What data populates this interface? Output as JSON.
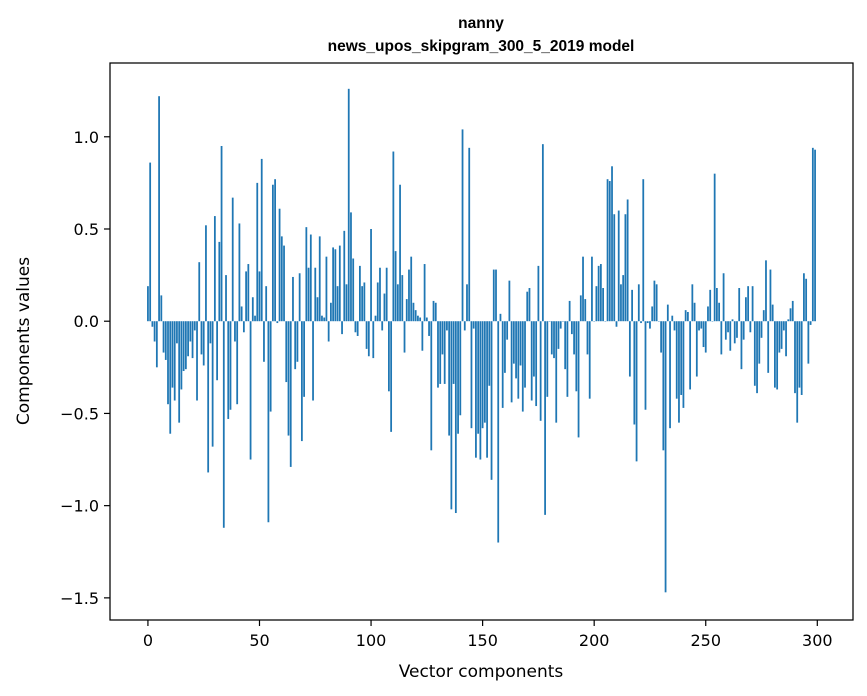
{
  "chart_data": {
    "type": "bar",
    "title": "nanny",
    "subtitle": "news_upos_skipgram_300_5_2019 model",
    "xlabel": "Vector components",
    "ylabel": "Components values",
    "xlim": [
      -17,
      316
    ],
    "ylim": [
      -1.62,
      1.4
    ],
    "xticks": [
      0,
      50,
      100,
      150,
      200,
      250,
      300
    ],
    "xtick_labels": [
      "0",
      "50",
      "100",
      "150",
      "200",
      "250",
      "300"
    ],
    "yticks": [
      -1.5,
      -1.0,
      -0.5,
      0.0,
      0.5,
      1.0
    ],
    "ytick_labels": [
      "−1.5",
      "−1.0",
      "−0.5",
      "0.0",
      "0.5",
      "1.0"
    ],
    "bar_color": "#1f77b4",
    "x": [
      0,
      1,
      2,
      3,
      4,
      5,
      6,
      7,
      8,
      9,
      10,
      11,
      12,
      13,
      14,
      15,
      16,
      17,
      18,
      19,
      20,
      21,
      22,
      23,
      24,
      25,
      26,
      27,
      28,
      29,
      30,
      31,
      32,
      33,
      34,
      35,
      36,
      37,
      38,
      39,
      40,
      41,
      42,
      43,
      44,
      45,
      46,
      47,
      48,
      49,
      50,
      51,
      52,
      53,
      54,
      55,
      56,
      57,
      58,
      59,
      60,
      61,
      62,
      63,
      64,
      65,
      66,
      67,
      68,
      69,
      70,
      71,
      72,
      73,
      74,
      75,
      76,
      77,
      78,
      79,
      80,
      81,
      82,
      83,
      84,
      85,
      86,
      87,
      88,
      89,
      90,
      91,
      92,
      93,
      94,
      95,
      96,
      97,
      98,
      99,
      100,
      101,
      102,
      103,
      104,
      105,
      106,
      107,
      108,
      109,
      110,
      111,
      112,
      113,
      114,
      115,
      116,
      117,
      118,
      119,
      120,
      121,
      122,
      123,
      124,
      125,
      126,
      127,
      128,
      129,
      130,
      131,
      132,
      133,
      134,
      135,
      136,
      137,
      138,
      139,
      140,
      141,
      142,
      143,
      144,
      145,
      146,
      147,
      148,
      149,
      150,
      151,
      152,
      153,
      154,
      155,
      156,
      157,
      158,
      159,
      160,
      161,
      162,
      163,
      164,
      165,
      166,
      167,
      168,
      169,
      170,
      171,
      172,
      173,
      174,
      175,
      176,
      177,
      178,
      179,
      180,
      181,
      182,
      183,
      184,
      185,
      186,
      187,
      188,
      189,
      190,
      191,
      192,
      193,
      194,
      195,
      196,
      197,
      198,
      199,
      200,
      201,
      202,
      203,
      204,
      205,
      206,
      207,
      208,
      209,
      210,
      211,
      212,
      213,
      214,
      215,
      216,
      217,
      218,
      219,
      220,
      221,
      222,
      223,
      224,
      225,
      226,
      227,
      228,
      229,
      230,
      231,
      232,
      233,
      234,
      235,
      236,
      237,
      238,
      239,
      240,
      241,
      242,
      243,
      244,
      245,
      246,
      247,
      248,
      249,
      250,
      251,
      252,
      253,
      254,
      255,
      256,
      257,
      258,
      259,
      260,
      261,
      262,
      263,
      264,
      265,
      266,
      267,
      268,
      269,
      270,
      271,
      272,
      273,
      274,
      275,
      276,
      277,
      278,
      279,
      280,
      281,
      282,
      283,
      284,
      285,
      286,
      287,
      288,
      289,
      290,
      291,
      292,
      293,
      294,
      295,
      296,
      297,
      298,
      299
    ],
    "values": [
      0.19,
      0.86,
      -0.03,
      -0.11,
      -0.25,
      1.22,
      0.14,
      -0.17,
      -0.21,
      -0.45,
      -0.61,
      -0.36,
      -0.43,
      -0.12,
      -0.55,
      -0.37,
      -0.27,
      -0.26,
      -0.19,
      -0.11,
      -0.2,
      -0.05,
      -0.43,
      0.32,
      -0.18,
      -0.24,
      0.52,
      -0.82,
      -0.12,
      -0.68,
      0.57,
      -0.32,
      0.43,
      0.95,
      -1.12,
      0.25,
      -0.53,
      -0.48,
      0.67,
      -0.11,
      -0.45,
      0.53,
      0.08,
      -0.06,
      0.27,
      0.31,
      -0.75,
      0.13,
      0.03,
      0.75,
      0.27,
      0.88,
      -0.22,
      0.19,
      -1.09,
      -0.49,
      0.74,
      0.77,
      -0.01,
      0.61,
      0.46,
      0.41,
      -0.33,
      -0.62,
      -0.79,
      0.24,
      -0.26,
      -0.22,
      0.26,
      -0.65,
      -0.41,
      0.51,
      0.29,
      0.47,
      -0.43,
      0.29,
      0.13,
      0.46,
      0.03,
      0.02,
      0.35,
      -0.11,
      0.1,
      0.4,
      0.39,
      0.19,
      0.41,
      -0.07,
      0.49,
      0.2,
      1.26,
      0.59,
      0.34,
      -0.06,
      -0.08,
      0.3,
      0.19,
      0.21,
      -0.15,
      -0.19,
      0.5,
      -0.2,
      0.03,
      0.21,
      0.29,
      -0.05,
      0.15,
      0.29,
      -0.38,
      -0.6,
      0.92,
      0.38,
      0.2,
      0.74,
      0.25,
      -0.17,
      0.12,
      0.28,
      0.35,
      0.1,
      0.06,
      0.03,
      0.02,
      -0.16,
      0.31,
      0.02,
      -0.08,
      -0.7,
      0.11,
      0.1,
      -0.36,
      -0.34,
      -0.18,
      -0.34,
      -0.05,
      -0.62,
      -1.02,
      -0.34,
      -1.04,
      -0.61,
      -0.51,
      1.04,
      -0.05,
      0.2,
      0.94,
      -0.58,
      -0.04,
      -0.74,
      -0.61,
      -0.75,
      -0.58,
      -0.55,
      -0.74,
      -0.35,
      -0.86,
      0.28,
      0.28,
      -1.2,
      0.04,
      -0.47,
      -0.28,
      -0.1,
      0.22,
      -0.44,
      -0.23,
      -0.31,
      -0.42,
      -0.24,
      -0.49,
      -0.36,
      0.16,
      0.18,
      -0.43,
      -0.3,
      -0.46,
      0.3,
      -0.54,
      0.96,
      -1.05,
      -0.41,
      0.0,
      -0.18,
      -0.2,
      -0.55,
      -0.15,
      -0.04,
      0.0,
      -0.26,
      -0.41,
      0.11,
      -0.07,
      -0.18,
      -0.38,
      -0.63,
      0.14,
      0.35,
      0.12,
      -0.18,
      -0.42,
      0.35,
      0.0,
      0.19,
      0.3,
      0.31,
      0.18,
      0.0,
      0.77,
      0.76,
      0.84,
      0.58,
      -0.03,
      0.6,
      0.2,
      0.25,
      0.58,
      0.66,
      -0.3,
      0.17,
      -0.56,
      -0.76,
      0.2,
      -0.01,
      0.77,
      -0.48,
      -0.01,
      -0.04,
      0.08,
      0.22,
      0.2,
      0.0,
      -0.17,
      -0.7,
      -1.47,
      0.09,
      -0.58,
      0.03,
      -0.05,
      -0.42,
      -0.55,
      -0.4,
      -0.47,
      0.06,
      0.05,
      -0.37,
      0.2,
      0.1,
      -0.3,
      -0.05,
      -0.04,
      -0.14,
      -0.17,
      0.08,
      0.17,
      0.0,
      0.8,
      0.18,
      0.1,
      -0.18,
      0.26,
      -0.1,
      -0.06,
      -0.16,
      0.01,
      -0.12,
      -0.09,
      0.18,
      -0.26,
      -0.1,
      0.13,
      0.19,
      -0.06,
      0.19,
      -0.35,
      -0.39,
      -0.23,
      -0.09,
      0.06,
      0.33,
      -0.28,
      0.28,
      0.09,
      -0.36,
      -0.37,
      -0.17,
      -0.15,
      -0.05,
      -0.19,
      0.01,
      0.07,
      0.11,
      -0.39,
      -0.55,
      -0.36,
      -0.4,
      0.26,
      0.23,
      -0.23,
      -0.02,
      0.94,
      0.93
    ]
  }
}
